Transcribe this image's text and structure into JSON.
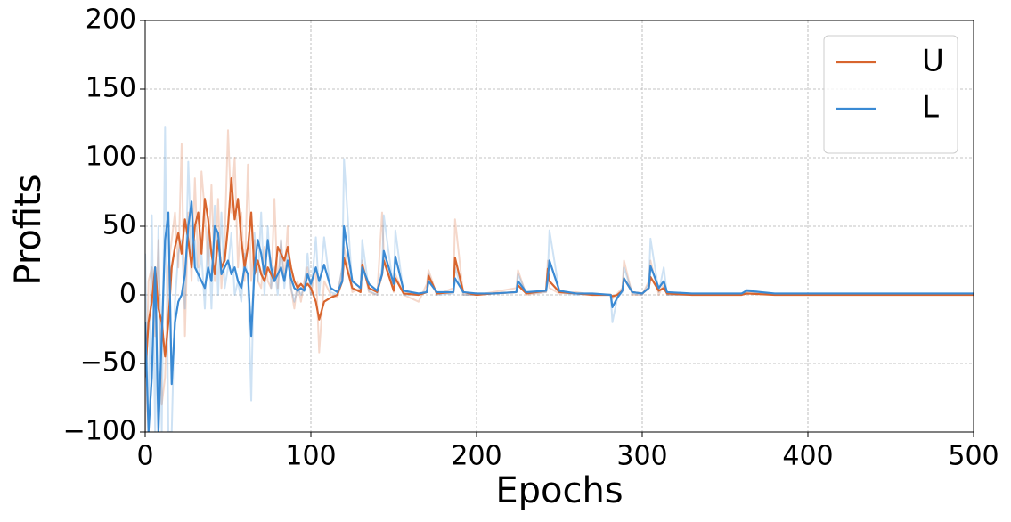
{
  "chart_data": {
    "type": "line",
    "x_label": "Epochs",
    "y_label": "Profits",
    "x": [
      0,
      2,
      4,
      6,
      8,
      10,
      12,
      14,
      16,
      18,
      20,
      22,
      24,
      26,
      28,
      30,
      32,
      34,
      36,
      38,
      40,
      42,
      44,
      46,
      48,
      50,
      52,
      54,
      56,
      58,
      60,
      62,
      64,
      66,
      68,
      70,
      72,
      74,
      76,
      78,
      80,
      82,
      84,
      86,
      88,
      90,
      92,
      94,
      96,
      98,
      100,
      103,
      105,
      108,
      112,
      116,
      119,
      120,
      125,
      130,
      131,
      135,
      140,
      143,
      144,
      150,
      151,
      156,
      165,
      170,
      171,
      176,
      186,
      187,
      192,
      200,
      210,
      224,
      225,
      230,
      242,
      243,
      244,
      250,
      260,
      270,
      281,
      282,
      285,
      288,
      289,
      294,
      300,
      304,
      305,
      310,
      313,
      315,
      330,
      360,
      363,
      380,
      420,
      460,
      500
    ],
    "series": [
      {
        "name": "U",
        "color": "#d8652e",
        "values": [
          -60,
          -20,
          -5,
          20,
          -10,
          -20,
          -45,
          -20,
          20,
          35,
          45,
          30,
          55,
          40,
          20,
          50,
          60,
          30,
          70,
          55,
          30,
          15,
          40,
          20,
          25,
          50,
          85,
          55,
          70,
          40,
          20,
          35,
          60,
          15,
          25,
          15,
          10,
          20,
          15,
          10,
          35,
          30,
          25,
          35,
          20,
          10,
          5,
          8,
          5,
          8,
          5,
          -5,
          -18,
          -5,
          -2,
          0,
          10,
          27,
          5,
          2,
          22,
          5,
          2,
          15,
          25,
          3,
          12,
          1,
          0,
          2,
          14,
          1,
          2,
          27,
          2,
          0,
          1,
          2,
          7,
          1,
          3,
          19,
          10,
          2,
          1,
          0,
          0,
          -1,
          0,
          3,
          12,
          2,
          1,
          5,
          13,
          3,
          5,
          1,
          0,
          0,
          1,
          0,
          0,
          0,
          0
        ],
        "raw_values": [
          -100,
          10,
          20,
          -30,
          40,
          -80,
          -60,
          20,
          40,
          60,
          20,
          110,
          -30,
          60,
          10,
          85,
          20,
          90,
          60,
          20,
          80,
          10,
          70,
          5,
          40,
          120,
          60,
          100,
          20,
          60,
          10,
          95,
          10,
          40,
          10,
          5,
          35,
          10,
          5,
          70,
          5,
          40,
          10,
          50,
          5,
          -10,
          10,
          -5,
          10,
          20,
          0,
          20,
          -42,
          10,
          0,
          -2,
          20,
          35,
          2,
          5,
          25,
          2,
          0,
          60,
          30,
          2,
          15,
          0,
          -5,
          8,
          18,
          0,
          5,
          55,
          0,
          0,
          2,
          5,
          18,
          0,
          2,
          25,
          5,
          1,
          2,
          0,
          0,
          -3,
          1,
          5,
          25,
          0,
          0,
          10,
          25,
          0,
          8,
          0,
          0,
          0,
          2,
          0,
          0,
          0,
          0
        ]
      },
      {
        "name": "L",
        "color": "#3a8ad4",
        "values": [
          -20,
          -100,
          -60,
          20,
          -100,
          -30,
          40,
          60,
          -65,
          -20,
          -5,
          0,
          15,
          50,
          68,
          20,
          15,
          10,
          5,
          20,
          10,
          50,
          45,
          15,
          20,
          25,
          15,
          20,
          10,
          5,
          20,
          15,
          -30,
          20,
          40,
          30,
          15,
          40,
          20,
          10,
          15,
          20,
          10,
          25,
          12,
          5,
          3,
          5,
          3,
          15,
          8,
          20,
          10,
          22,
          5,
          2,
          10,
          50,
          10,
          5,
          20,
          8,
          3,
          15,
          32,
          8,
          28,
          3,
          1,
          2,
          10,
          2,
          2,
          12,
          2,
          1,
          1,
          2,
          10,
          2,
          3,
          12,
          25,
          3,
          1,
          1,
          0,
          -9,
          -2,
          3,
          12,
          2,
          1,
          5,
          21,
          5,
          10,
          2,
          1,
          1,
          3,
          1,
          1,
          1,
          1
        ],
        "raw_values": [
          30,
          -100,
          58,
          -100,
          50,
          -100,
          122,
          -100,
          -100,
          -5,
          30,
          40,
          -10,
          97,
          30,
          40,
          10,
          30,
          -10,
          50,
          -10,
          65,
          0,
          60,
          5,
          20,
          45,
          0,
          10,
          -5,
          30,
          10,
          -77,
          45,
          10,
          60,
          0,
          50,
          5,
          20,
          0,
          40,
          5,
          30,
          5,
          -5,
          5,
          0,
          5,
          30,
          0,
          42,
          0,
          42,
          2,
          0,
          20,
          99,
          5,
          2,
          40,
          3,
          0,
          20,
          58,
          3,
          47,
          0,
          0,
          3,
          15,
          0,
          1,
          20,
          0,
          0,
          1,
          2,
          15,
          1,
          2,
          15,
          47,
          2,
          0,
          1,
          0,
          -20,
          -2,
          2,
          20,
          1,
          0,
          8,
          41,
          2,
          20,
          0,
          0,
          0,
          4,
          0,
          0,
          0,
          0
        ]
      }
    ],
    "xlim": [
      0,
      500
    ],
    "xticks": [
      0,
      100,
      200,
      300,
      400,
      500
    ],
    "ylim": [
      -100,
      200
    ],
    "yticks": [
      {
        "value": -100,
        "label": "−100"
      },
      {
        "value": -50,
        "label": "−50"
      },
      0,
      50,
      100,
      150,
      200
    ],
    "grid": true,
    "legend": "upper right"
  }
}
